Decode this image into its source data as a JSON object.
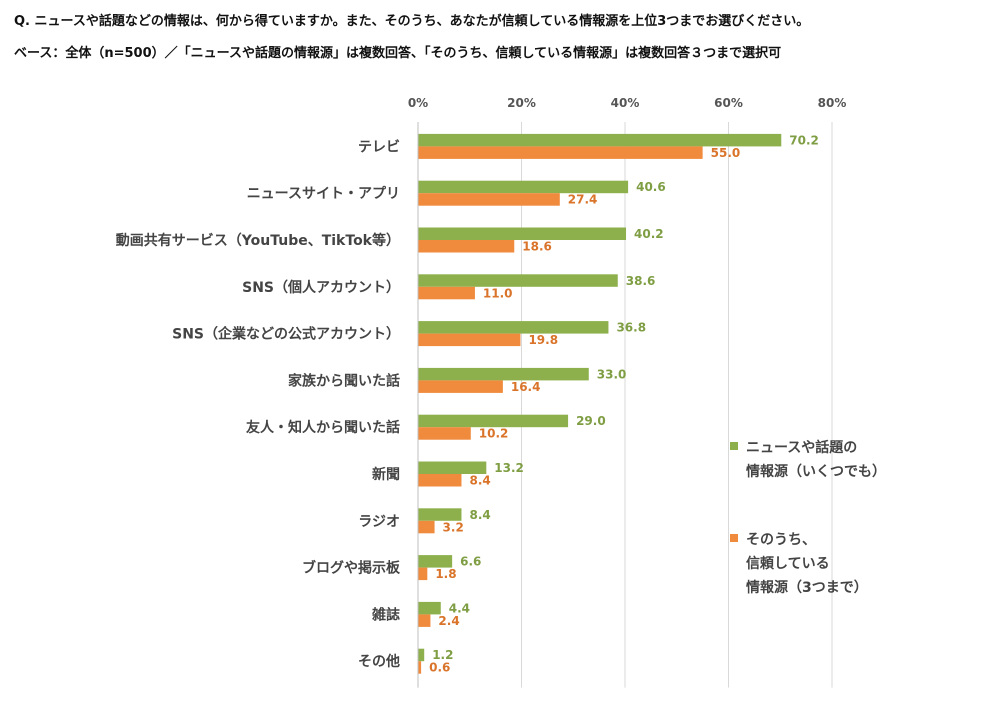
{
  "header": {
    "question": "Q. ニュースや話題などの情報は、何から得ていますか。また、そのうち、あなたが信頼している情報源を上位3つまでお選びください。",
    "base": "ベース：全体（n=500）／「ニュースや話題の情報源」は複数回答、「そのうち、信頼している情報源」は複数回答３つまで選択可"
  },
  "legend": {
    "sources": "ニュースや話題の\n情報源（いくつでも）",
    "trusted": "そのうち、\n信頼している\n情報源（3つまで）"
  },
  "colors": {
    "sources": "#8db04c",
    "trusted": "#f08a3c",
    "sources_label": "#7f9e43",
    "trusted_label": "#d9742a",
    "grid": "#d9d9d9"
  },
  "chart_data": {
    "type": "bar",
    "orientation": "horizontal",
    "categories": [
      "テレビ",
      "ニュースサイト・アプリ",
      "動画共有サービス（YouTube、TikTok等）",
      "SNS（個人アカウント）",
      "SNS（企業などの公式アカウント）",
      "家族から聞いた話",
      "友人・知人から聞いた話",
      "新聞",
      "ラジオ",
      "ブログや掲示板",
      "雑誌",
      "その他"
    ],
    "series": [
      {
        "name": "ニュースや話題の情報源（いくつでも）",
        "values": [
          70.2,
          40.6,
          40.2,
          38.6,
          36.8,
          33.0,
          29.0,
          13.2,
          8.4,
          6.6,
          4.4,
          1.2
        ]
      },
      {
        "name": "そのうち、信頼している情報源（3つまで）",
        "values": [
          55.0,
          27.4,
          18.6,
          11.0,
          19.8,
          16.4,
          10.2,
          8.4,
          3.2,
          1.8,
          2.4,
          0.6
        ]
      }
    ],
    "xlim": [
      0,
      80
    ],
    "ticks": [
      "0%",
      "20%",
      "40%",
      "60%",
      "80%"
    ],
    "tick_values": [
      0,
      20,
      40,
      60,
      80
    ],
    "grid": true,
    "legend_position": "right"
  }
}
